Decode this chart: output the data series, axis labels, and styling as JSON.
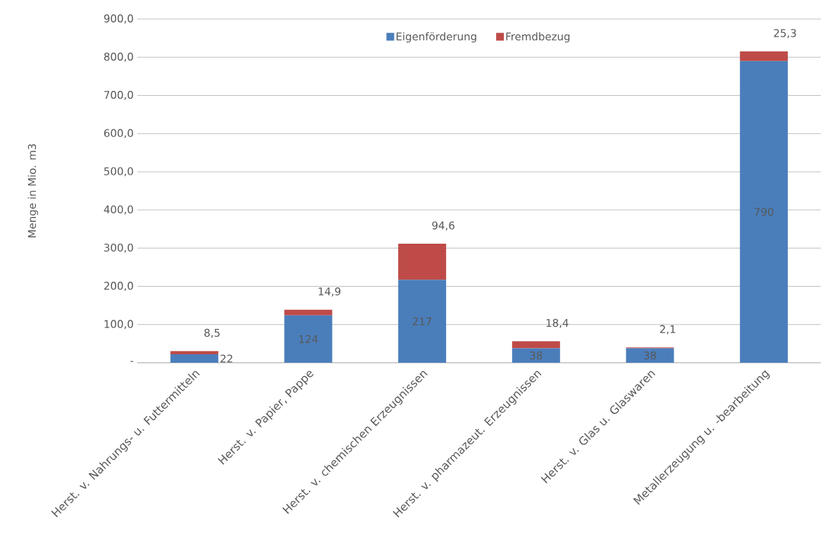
{
  "chart_data": {
    "type": "bar",
    "stacked": true,
    "ylabel": "Menge in Mio. m3",
    "categories": [
      "Herst. v. Nahrungs- u. Futtermitteln",
      "Herst. v. Papier, Pappe",
      "Herst. v. chemischen Erzeugnissen",
      "Herst. v. pharmazeut. Erzeugnissen",
      "Herst. v. Glas u. Glaswaren",
      "Metallerzeugung u. -bearbeitung"
    ],
    "series": [
      {
        "name": "Eigenförderung",
        "color": "#4a7ebb",
        "values": [
          22,
          124,
          217,
          38,
          38,
          790
        ],
        "value_labels": [
          "22",
          "124",
          "217",
          "38",
          "38",
          "790"
        ]
      },
      {
        "name": "Fremdbezug",
        "color": "#be4b48",
        "values": [
          8.5,
          14.9,
          94.6,
          18.4,
          2.1,
          25.3
        ],
        "value_labels": [
          "8,5",
          "14,9",
          "94,6",
          "18,4",
          "2,1",
          "25,3"
        ]
      }
    ],
    "ylim": [
      0,
      900
    ],
    "yticks": [
      {
        "value": 0,
        "label": "-"
      },
      {
        "value": 100,
        "label": "100,0"
      },
      {
        "value": 200,
        "label": "200,0"
      },
      {
        "value": 300,
        "label": "300,0"
      },
      {
        "value": 400,
        "label": "400,0"
      },
      {
        "value": 500,
        "label": "500,0"
      },
      {
        "value": 600,
        "label": "600,0"
      },
      {
        "value": 700,
        "label": "700,0"
      },
      {
        "value": 800,
        "label": "800,0"
      },
      {
        "value": 900,
        "label": "900,0"
      }
    ],
    "grid": "y",
    "legend": "top"
  }
}
